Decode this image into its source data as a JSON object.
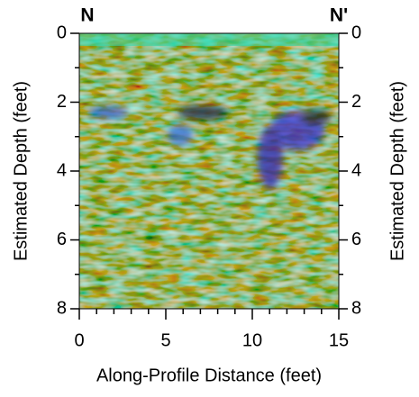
{
  "chart_data": {
    "type": "radargram",
    "label_left": "N",
    "label_right": "N'",
    "label_color": "#7a3f10",
    "xlabel": "Along-Profile Distance (feet)",
    "ylabel": "Estimated Depth (feet)",
    "y2label": "Estimated Depth (feet)",
    "xlim": [
      0,
      15
    ],
    "xticks": [
      0,
      5,
      10,
      15
    ],
    "x_minor_ticks": [
      1,
      2,
      3,
      4,
      6,
      7,
      8,
      9,
      11,
      12,
      13,
      14
    ],
    "ylim": [
      0,
      8
    ],
    "yticks": [
      0,
      2,
      4,
      6,
      8
    ],
    "y_minor_ticks": [
      1,
      3,
      5,
      7
    ],
    "y2lim": [
      0,
      8
    ],
    "y2ticks": [
      0,
      2,
      4,
      6,
      8
    ],
    "y_inverted": true
  }
}
